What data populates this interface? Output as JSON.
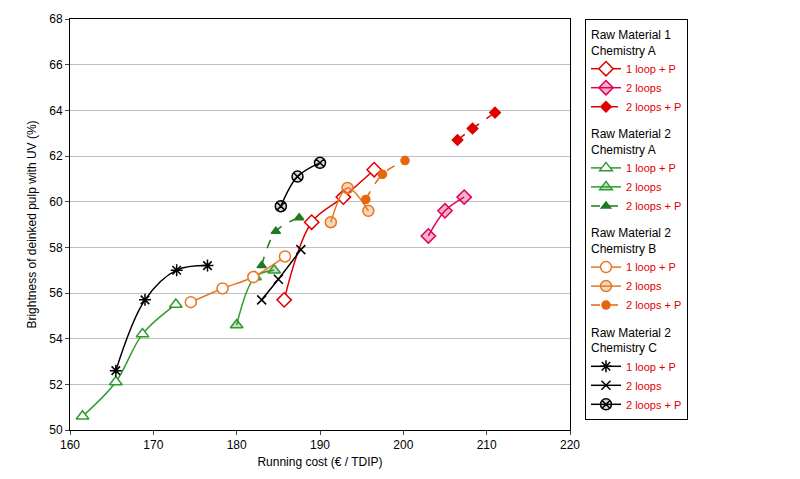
{
  "chart_data": {
    "type": "line",
    "x_label": "Running cost (€ / TDIP)",
    "y_label": "Brightness of deinked pulp with UV (%)",
    "xlim": [
      160,
      220
    ],
    "xticks": [
      160,
      170,
      180,
      190,
      200,
      210,
      220
    ],
    "ylim": [
      50,
      68
    ],
    "yticks": [
      50,
      52,
      54,
      56,
      58,
      60,
      62,
      64,
      66,
      68
    ],
    "grid": true,
    "legend": "right",
    "series": [
      {
        "group": [
          "Raw Material 1",
          "Chemistry A"
        ],
        "name": "1 loop + P",
        "color": "#e00000",
        "marker": "open diamond",
        "line_style": "solid",
        "x": [
          185.7,
          189.0,
          192.8,
          196.5
        ],
        "values": [
          55.7,
          59.1,
          60.2,
          61.4
        ]
      },
      {
        "group": [
          "Raw Material 1",
          "Chemistry A"
        ],
        "name": "2 loops",
        "color": "#e0005a",
        "marker": "light diamond",
        "line_style": "solid",
        "x": [
          203.0,
          205.0,
          207.3
        ],
        "values": [
          58.5,
          59.6,
          60.2
        ]
      },
      {
        "group": [
          "Raw Material 1",
          "Chemistry A"
        ],
        "name": "2 loops + P",
        "color": "#e00000",
        "marker": "filled diamond",
        "line_style": "dashed",
        "x": [
          206.5,
          208.3,
          211.0
        ],
        "values": [
          62.7,
          63.2,
          63.9
        ]
      },
      {
        "group": [
          "Raw Material 2",
          "Chemistry A"
        ],
        "name": "1 loop + P",
        "color": "#2e9a2e",
        "marker": "open triangle",
        "line_style": "solid",
        "x": [
          161.5,
          165.5,
          168.7,
          172.7
        ],
        "values": [
          50.6,
          52.1,
          54.2,
          55.5
        ]
      },
      {
        "group": [
          "Raw Material 2",
          "Chemistry A"
        ],
        "name": "2 loops",
        "color": "#2e9a2e",
        "marker": "light triangle",
        "line_style": "solid",
        "x": [
          180.0,
          182.2,
          184.5
        ],
        "values": [
          54.6,
          56.7,
          57.0
        ]
      },
      {
        "group": [
          "Raw Material 2",
          "Chemistry A"
        ],
        "name": "2 loops + P",
        "color": "#1e7a1e",
        "marker": "filled triangle",
        "line_style": "dashed",
        "x": [
          183.0,
          184.7,
          187.5
        ],
        "values": [
          57.2,
          58.7,
          59.3
        ]
      },
      {
        "group": [
          "Raw Material 2",
          "Chemistry B"
        ],
        "name": "1 loop + P",
        "color": "#e87722",
        "marker": "open circle",
        "line_style": "solid",
        "x": [
          174.5,
          178.3,
          182.0,
          185.8
        ],
        "values": [
          55.6,
          56.2,
          56.7,
          57.6
        ]
      },
      {
        "group": [
          "Raw Material 2",
          "Chemistry B"
        ],
        "name": "2 loops",
        "color": "#e87722",
        "marker": "light circle",
        "line_style": "solid",
        "x": [
          191.3,
          193.3,
          195.8
        ],
        "values": [
          59.1,
          60.6,
          59.6
        ]
      },
      {
        "group": [
          "Raw Material 2",
          "Chemistry B"
        ],
        "name": "2 loops + P",
        "color": "#e8650a",
        "marker": "filled circle",
        "line_style": "dashed",
        "x": [
          195.5,
          197.5,
          200.2
        ],
        "values": [
          60.1,
          61.2,
          61.8
        ]
      },
      {
        "group": [
          "Raw Material 2",
          "Chemistry C"
        ],
        "name": "1 loop + P",
        "color": "#000000",
        "marker": "asterisk",
        "line_style": "solid",
        "x": [
          165.5,
          169.0,
          172.8,
          176.5
        ],
        "values": [
          52.6,
          55.7,
          57.0,
          57.2
        ]
      },
      {
        "group": [
          "Raw Material 2",
          "Chemistry C"
        ],
        "name": "2 loops",
        "color": "#000000",
        "marker": "x",
        "line_style": "solid",
        "x": [
          183.0,
          185.0,
          187.7
        ],
        "values": [
          55.7,
          56.6,
          57.9
        ]
      },
      {
        "group": [
          "Raw Material 2",
          "Chemistry C"
        ],
        "name": "2 loops + P",
        "color": "#000000",
        "marker": "circled x",
        "line_style": "solid",
        "x": [
          185.3,
          187.3,
          190.0
        ],
        "values": [
          59.8,
          61.1,
          61.7
        ]
      }
    ]
  }
}
